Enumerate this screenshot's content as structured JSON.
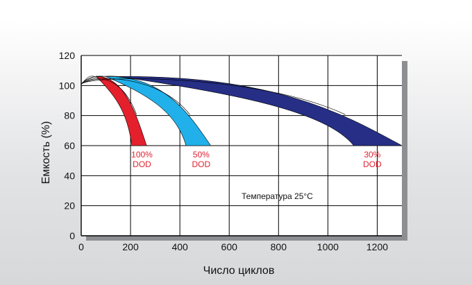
{
  "colors": {
    "grid": "#000000",
    "plot_bg": "#ffffff",
    "shadow": "#8e8f93",
    "label_red": "#e0202e"
  },
  "chart_data": {
    "type": "area",
    "xlabel": "Число циклов",
    "ylabel": "Емкость (%)",
    "xlim": [
      0,
      1300
    ],
    "ylim": [
      0,
      120
    ],
    "x_ticks": [
      "0",
      "200",
      "400",
      "600",
      "800",
      "1000",
      "1200"
    ],
    "y_ticks": [
      "0",
      "20",
      "40",
      "60",
      "80",
      "100",
      "120"
    ],
    "grid": true,
    "annotation": "Температура 25°C",
    "series": [
      {
        "line1": "100%",
        "line2": "DOD",
        "color": "#e4202d",
        "start": [
          0,
          101
        ],
        "peak": [
          60,
          106
        ],
        "inner_end": [
          205,
          60
        ],
        "outer_end": [
          265,
          60
        ]
      },
      {
        "line1": "50%",
        "line2": "DOD",
        "color": "#21b0ea",
        "start": [
          0,
          101
        ],
        "peak": [
          100,
          106
        ],
        "inner_end": [
          425,
          60
        ],
        "outer_end": [
          525,
          60
        ]
      },
      {
        "line1": "30%",
        "line2": "DOD",
        "color": "#262f85",
        "start": [
          0,
          101
        ],
        "peak": [
          150,
          106
        ],
        "inner_end": [
          1105,
          60
        ],
        "outer_end": [
          1300,
          60
        ]
      }
    ]
  }
}
